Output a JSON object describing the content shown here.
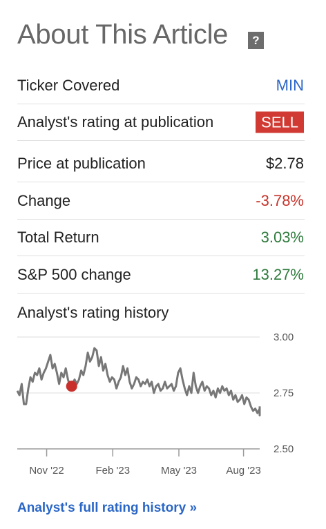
{
  "header": {
    "title": "About This Article",
    "help_icon_text": "?"
  },
  "rows": [
    {
      "label": "Ticker Covered",
      "value": "MIN",
      "color": "#2a66c6"
    },
    {
      "label": "Analyst's rating at publication",
      "value": "SELL",
      "badge_color": "#d13a33"
    },
    {
      "label": "Price at publication",
      "value": "$2.78",
      "color": "#222222"
    },
    {
      "label": "Change",
      "value": "-3.78%",
      "color": "#c7342b"
    },
    {
      "label": "Total Return",
      "value": "3.03%",
      "color": "#2d7a3c"
    },
    {
      "label": "S&P 500 change",
      "value": "13.27%",
      "color": "#2d7a3c"
    }
  ],
  "history": {
    "title": "Analyst's rating history",
    "link": "Analyst's full rating history »"
  },
  "chart_data": {
    "type": "line",
    "x_tick_labels": [
      "Nov '22",
      "Feb '23",
      "May '23",
      "Aug '23"
    ],
    "y_tick_labels": [
      "3.00",
      "2.75",
      "2.50"
    ],
    "ylim": [
      2.5,
      3.0
    ],
    "x_range_days": [
      0,
      330
    ],
    "x_ticks_days": [
      40,
      130,
      220,
      308
    ],
    "series": [
      {
        "line_color": "#777777",
        "points": [
          [
            0,
            2.76
          ],
          [
            3,
            2.74
          ],
          [
            6,
            2.79
          ],
          [
            9,
            2.7
          ],
          [
            12,
            2.7
          ],
          [
            15,
            2.77
          ],
          [
            18,
            2.82
          ],
          [
            21,
            2.8
          ],
          [
            24,
            2.84
          ],
          [
            27,
            2.83
          ],
          [
            30,
            2.86
          ],
          [
            33,
            2.81
          ],
          [
            36,
            2.84
          ],
          [
            39,
            2.86
          ],
          [
            42,
            2.89
          ],
          [
            45,
            2.92
          ],
          [
            48,
            2.86
          ],
          [
            51,
            2.88
          ],
          [
            54,
            2.84
          ],
          [
            57,
            2.79
          ],
          [
            60,
            2.84
          ],
          [
            63,
            2.82
          ],
          [
            66,
            2.86
          ],
          [
            69,
            2.81
          ],
          [
            72,
            2.78
          ],
          [
            75,
            2.79
          ],
          [
            78,
            2.81
          ],
          [
            81,
            2.79
          ],
          [
            84,
            2.81
          ],
          [
            87,
            2.85
          ],
          [
            90,
            2.83
          ],
          [
            93,
            2.87
          ],
          [
            96,
            2.93
          ],
          [
            99,
            2.89
          ],
          [
            102,
            2.91
          ],
          [
            105,
            2.95
          ],
          [
            108,
            2.94
          ],
          [
            111,
            2.87
          ],
          [
            114,
            2.91
          ],
          [
            117,
            2.85
          ],
          [
            120,
            2.88
          ],
          [
            123,
            2.83
          ],
          [
            126,
            2.8
          ],
          [
            129,
            2.82
          ],
          [
            132,
            2.81
          ],
          [
            135,
            2.77
          ],
          [
            138,
            2.8
          ],
          [
            141,
            2.82
          ],
          [
            144,
            2.87
          ],
          [
            147,
            2.83
          ],
          [
            150,
            2.86
          ],
          [
            153,
            2.8
          ],
          [
            156,
            2.77
          ],
          [
            159,
            2.79
          ],
          [
            162,
            2.82
          ],
          [
            165,
            2.81
          ],
          [
            168,
            2.78
          ],
          [
            171,
            2.8
          ],
          [
            174,
            2.79
          ],
          [
            177,
            2.81
          ],
          [
            180,
            2.78
          ],
          [
            183,
            2.8
          ],
          [
            186,
            2.75
          ],
          [
            189,
            2.78
          ],
          [
            192,
            2.79
          ],
          [
            195,
            2.76
          ],
          [
            198,
            2.77
          ],
          [
            201,
            2.8
          ],
          [
            204,
            2.77
          ],
          [
            207,
            2.78
          ],
          [
            210,
            2.79
          ],
          [
            213,
            2.76
          ],
          [
            216,
            2.78
          ],
          [
            219,
            2.84
          ],
          [
            222,
            2.86
          ],
          [
            225,
            2.81
          ],
          [
            228,
            2.77
          ],
          [
            231,
            2.74
          ],
          [
            234,
            2.78
          ],
          [
            237,
            2.75
          ],
          [
            240,
            2.84
          ],
          [
            243,
            2.78
          ],
          [
            246,
            2.75
          ],
          [
            249,
            2.78
          ],
          [
            252,
            2.8
          ],
          [
            255,
            2.76
          ],
          [
            258,
            2.78
          ],
          [
            261,
            2.77
          ],
          [
            264,
            2.74
          ],
          [
            267,
            2.76
          ],
          [
            270,
            2.73
          ],
          [
            273,
            2.77
          ],
          [
            276,
            2.75
          ],
          [
            279,
            2.78
          ],
          [
            282,
            2.76
          ],
          [
            285,
            2.77
          ],
          [
            288,
            2.74
          ],
          [
            291,
            2.76
          ],
          [
            294,
            2.72
          ],
          [
            297,
            2.74
          ],
          [
            300,
            2.71
          ],
          [
            303,
            2.72
          ],
          [
            306,
            2.74
          ],
          [
            309,
            2.7
          ],
          [
            312,
            2.73
          ],
          [
            315,
            2.72
          ],
          [
            318,
            2.69
          ],
          [
            321,
            2.67
          ],
          [
            324,
            2.68
          ],
          [
            327,
            2.66
          ],
          [
            330,
            2.68
          ],
          [
            333,
            2.67
          ],
          [
            336,
            2.65
          ],
          [
            339,
            2.68
          ],
          [
            342,
            2.66
          ],
          [
            345,
            2.69
          ]
        ]
      }
    ],
    "markers": [
      {
        "x_day": 74,
        "y": 2.78,
        "color": "#c9302c"
      }
    ],
    "grid": true
  }
}
